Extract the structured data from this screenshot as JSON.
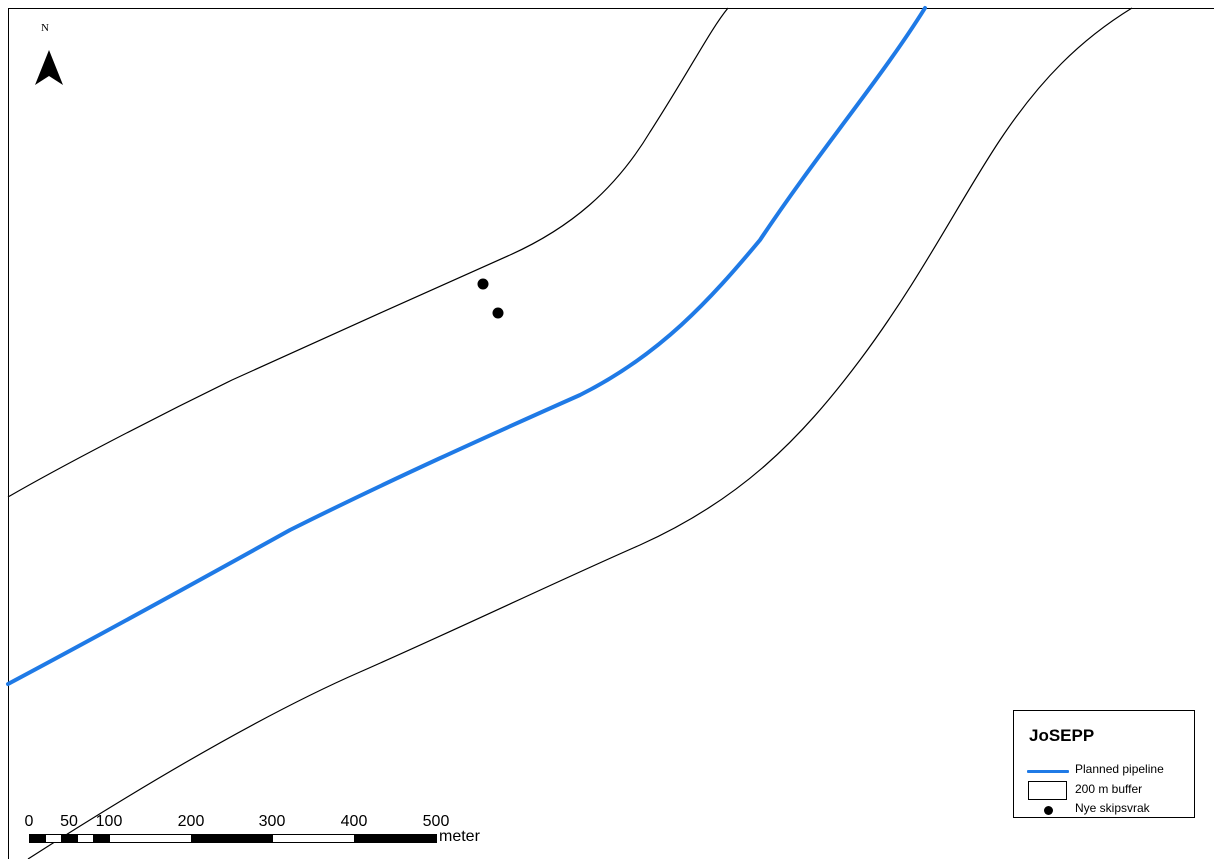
{
  "map": {
    "north_label": "N",
    "colors": {
      "pipeline": "#1f7ae6",
      "buffer": "#000000",
      "wreck": "#000000",
      "background": "#ffffff"
    }
  },
  "legend": {
    "title": "JoSEPP",
    "items": [
      {
        "label": "Planned pipeline",
        "symbol": "blue-line"
      },
      {
        "label": "200 m buffer",
        "symbol": "outline-box"
      },
      {
        "label": "Nye skipsvrak",
        "symbol": "black-dot"
      }
    ]
  },
  "scalebar": {
    "ticks": [
      "0",
      "50",
      "100",
      "200",
      "300",
      "400",
      "500"
    ],
    "unit": "meter"
  }
}
